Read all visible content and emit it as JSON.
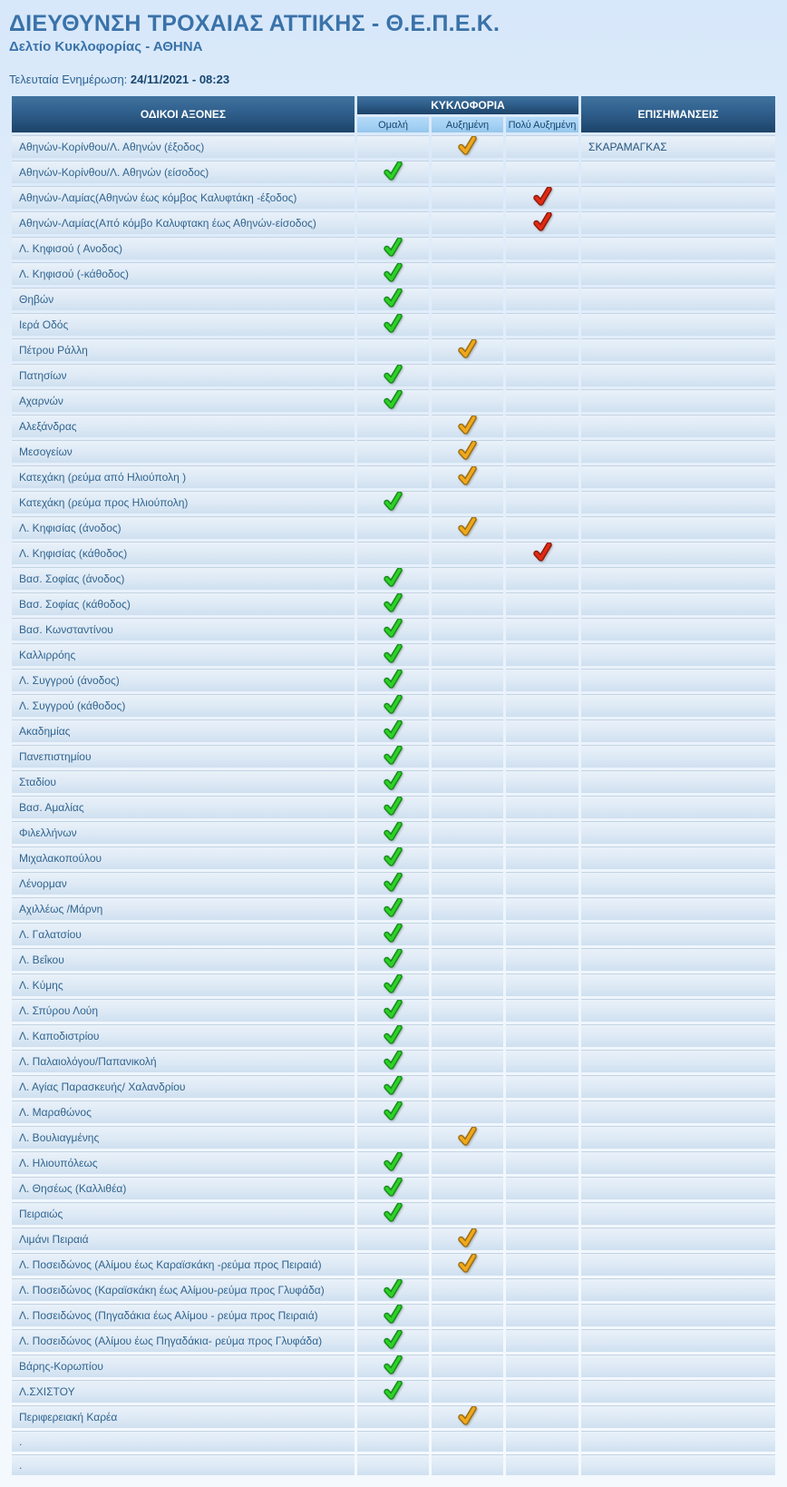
{
  "page": {
    "title": "ΔΙΕΥΘΥΝΣΗ ΤΡΟΧΑΙΑΣ ΑΤΤΙΚΗΣ - Θ.Ε.Π.Ε.Κ.",
    "subtitle": "Δελτίο Κυκλοφορίας - ΑΘΗΝΑ",
    "last_update_label": "Τελευταία Ενημέρωση:",
    "last_update_value": "24/11/2021 - 08:23"
  },
  "table": {
    "columns": {
      "axes": "ΟΔΙΚΟΙ ΑΞΟΝΕΣ",
      "traffic": "ΚΥΚΛΟΦΟΡΙΑ",
      "levels": [
        "Ομαλή",
        "Αυξημένη",
        "Πολύ Αυξημένη"
      ],
      "notes": "ΕΠΙΣΗΜΑΝΣΕΙΣ"
    },
    "status_styles": {
      "normal": {
        "label": "Ομαλή",
        "fill": "#2fd028",
        "outline": "#128a18",
        "icon": "check-normal-icon"
      },
      "increased": {
        "label": "Αυξημένη",
        "fill": "#f0a81c",
        "outline": "#9a6c10",
        "icon": "check-increased-icon"
      },
      "very_increased": {
        "label": "Πολύ Αυξημένη",
        "fill": "#e22a12",
        "outline": "#8a1a0a",
        "icon": "check-very-increased-icon"
      }
    },
    "rows": [
      {
        "axis": "Αθηνών-Κορίνθου/Λ. Αθηνών (έξοδος)",
        "status": "increased",
        "note": "ΣΚΑΡΑΜΑΓΚΑΣ"
      },
      {
        "axis": "Αθηνών-Κορίνθου/Λ. Αθηνών (είσοδος)",
        "status": "normal",
        "note": ""
      },
      {
        "axis": "Αθηνών-Λαμίας(Αθηνών έως κόμβος Καλυφτάκη -έξοδος)",
        "status": "very_increased",
        "note": ""
      },
      {
        "axis": "Αθηνών-Λαμίας(Από κόμβο Καλυφτακη έως Αθηνών-είσοδος)",
        "status": "very_increased",
        "note": ""
      },
      {
        "axis": "Λ. Κηφισού ( Ανοδος)",
        "status": "normal",
        "note": ""
      },
      {
        "axis": "Λ. Κηφισού (-κάθοδος)",
        "status": "normal",
        "note": ""
      },
      {
        "axis": "Θηβών",
        "status": "normal",
        "note": ""
      },
      {
        "axis": "Ιερά Οδός",
        "status": "normal",
        "note": ""
      },
      {
        "axis": "Πέτρου Ράλλη",
        "status": "increased",
        "note": ""
      },
      {
        "axis": "Πατησίων",
        "status": "normal",
        "note": ""
      },
      {
        "axis": "Αχαρνών",
        "status": "normal",
        "note": ""
      },
      {
        "axis": "Αλεξάνδρας",
        "status": "increased",
        "note": ""
      },
      {
        "axis": "Μεσογείων",
        "status": "increased",
        "note": ""
      },
      {
        "axis": "Κατεχάκη (ρεύμα από Ηλιούπολη )",
        "status": "increased",
        "note": ""
      },
      {
        "axis": "Κατεχάκη (ρεύμα προς Ηλιούπολη)",
        "status": "normal",
        "note": ""
      },
      {
        "axis": "Λ. Κηφισίας (άνοδος)",
        "status": "increased",
        "note": ""
      },
      {
        "axis": "Λ. Κηφισίας (κάθοδος)",
        "status": "very_increased",
        "note": ""
      },
      {
        "axis": "Βασ. Σοφίας (άνοδος)",
        "status": "normal",
        "note": ""
      },
      {
        "axis": "Βασ. Σοφίας (κάθοδος)",
        "status": "normal",
        "note": ""
      },
      {
        "axis": "Βασ. Κωνσταντίνου",
        "status": "normal",
        "note": ""
      },
      {
        "axis": "Καλλιρρόης",
        "status": "normal",
        "note": ""
      },
      {
        "axis": "Λ. Συγγρού (άνοδος)",
        "status": "normal",
        "note": ""
      },
      {
        "axis": "Λ. Συγγρού (κάθοδος)",
        "status": "normal",
        "note": ""
      },
      {
        "axis": "Ακαδημίας",
        "status": "normal",
        "note": ""
      },
      {
        "axis": "Πανεπιστημίου",
        "status": "normal",
        "note": ""
      },
      {
        "axis": "Σταδίου",
        "status": "normal",
        "note": ""
      },
      {
        "axis": "Βασ. Αμαλίας",
        "status": "normal",
        "note": ""
      },
      {
        "axis": "Φιλελλήνων",
        "status": "normal",
        "note": ""
      },
      {
        "axis": "Μιχαλακοπούλου",
        "status": "normal",
        "note": ""
      },
      {
        "axis": "Λένορμαν",
        "status": "normal",
        "note": ""
      },
      {
        "axis": "Αχιλλέως /Μάρνη",
        "status": "normal",
        "note": ""
      },
      {
        "axis": "Λ. Γαλατσίου",
        "status": "normal",
        "note": ""
      },
      {
        "axis": "Λ. Βεΐκου",
        "status": "normal",
        "note": ""
      },
      {
        "axis": "Λ. Κύμης",
        "status": "normal",
        "note": ""
      },
      {
        "axis": "Λ. Σπύρου Λούη",
        "status": "normal",
        "note": ""
      },
      {
        "axis": "Λ. Καποδιστρίου",
        "status": "normal",
        "note": ""
      },
      {
        "axis": "Λ. Παλαιολόγου/Παπανικολή",
        "status": "normal",
        "note": ""
      },
      {
        "axis": "Λ. Αγίας Παρασκευής/ Χαλανδρίου",
        "status": "normal",
        "note": ""
      },
      {
        "axis": "Λ. Μαραθώνος",
        "status": "normal",
        "note": ""
      },
      {
        "axis": "Λ. Βουλιαγμένης",
        "status": "increased",
        "note": ""
      },
      {
        "axis": "Λ. Ηλιουπόλεως",
        "status": "normal",
        "note": ""
      },
      {
        "axis": "Λ. Θησέως (Καλλιθέα)",
        "status": "normal",
        "note": ""
      },
      {
        "axis": "Πειραιώς",
        "status": "normal",
        "note": ""
      },
      {
        "axis": "Λιμάνι Πειραιά",
        "status": "increased",
        "note": ""
      },
      {
        "axis": "Λ. Ποσειδώνος (Αλίμου έως Καραϊσκάκη -ρεύμα προς Πειραιά)",
        "status": "increased",
        "note": ""
      },
      {
        "axis": "Λ. Ποσειδώνος (Καραϊσκάκη έως Αλίμου-ρεύμα προς Γλυφάδα)",
        "status": "normal",
        "note": ""
      },
      {
        "axis": "Λ. Ποσειδώνος (Πηγαδάκια έως Αλίμου - ρεύμα προς Πειραιά)",
        "status": "normal",
        "note": ""
      },
      {
        "axis": "Λ. Ποσειδώνος (Αλίμου έως Πηγαδάκια- ρεύμα προς Γλυφάδα)",
        "status": "normal",
        "note": ""
      },
      {
        "axis": "Βάρης-Κορωπίου",
        "status": "normal",
        "note": ""
      },
      {
        "axis": "Λ.ΣΧΙΣΤΟΥ",
        "status": "normal",
        "note": ""
      },
      {
        "axis": "Περιφερειακή Καρέα",
        "status": "increased",
        "note": ""
      },
      {
        "axis": ".",
        "status": "none",
        "note": ""
      },
      {
        "axis": ".",
        "status": "none",
        "note": ""
      }
    ]
  },
  "colors": {
    "title_blue": "#3a72a9",
    "header_dark_blue": "#2f5f8c",
    "subheader_light_blue": "#a3d0f3",
    "row_blue": "#dde9f5",
    "text_blue": "#30648f"
  }
}
